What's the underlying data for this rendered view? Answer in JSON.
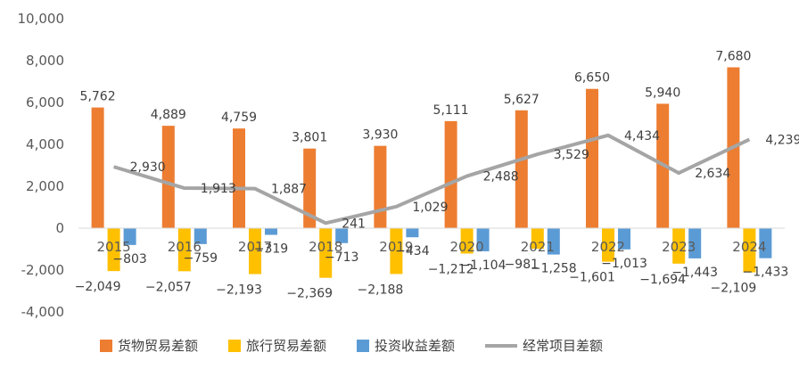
{
  "chart_data": {
    "type": "bar",
    "categories": [
      "2015",
      "2016",
      "2017",
      "2018",
      "2019",
      "2020",
      "2021",
      "2022",
      "2023",
      "2024"
    ],
    "series": [
      {
        "name": "货物贸易差额",
        "type": "bar",
        "color": "#ED7D31",
        "values": [
          5762,
          4889,
          4759,
          3801,
          3930,
          5111,
          5627,
          6650,
          5940,
          7680
        ],
        "labels": [
          "5,762",
          "4,889",
          "4,759",
          "3,801",
          "3,930",
          "5,111",
          "5,627",
          "6,650",
          "5,940",
          "7,680"
        ]
      },
      {
        "name": "旅行贸易差额",
        "type": "bar",
        "color": "#FFC000",
        "values": [
          -2049,
          -2057,
          -2193,
          -2369,
          -2188,
          -1212,
          -981,
          -1601,
          -1694,
          -2109
        ],
        "labels": [
          "−2,049",
          "−2,057",
          "−2,193",
          "−2,369",
          "−2,188",
          "−1,212",
          "−981",
          "−1,601",
          "−1,694",
          "−2,109"
        ]
      },
      {
        "name": "投资收益差额",
        "type": "bar",
        "color": "#5B9BD5",
        "values": [
          -803,
          -759,
          -319,
          -713,
          -434,
          -1104,
          -1258,
          -1013,
          -1443,
          -1433
        ],
        "labels": [
          "−803",
          "−759",
          "−319",
          "−713",
          "−434",
          "−1,104",
          "−1,258",
          "−1,013",
          "−1,443",
          "−1,433"
        ]
      },
      {
        "name": "经常项目差额",
        "type": "line",
        "color": "#A5A5A5",
        "values": [
          2930,
          1913,
          1887,
          241,
          1029,
          2488,
          3529,
          4434,
          2634,
          4239
        ],
        "labels": [
          "2,930",
          "1,913",
          "1,887",
          "241",
          "1,029",
          "2,488",
          "3,529",
          "4,434",
          "2,634",
          "4,239"
        ]
      }
    ],
    "yticks": [
      "10,000",
      "8,000",
      "6,000",
      "4,000",
      "2,000",
      "0",
      "-2,000",
      "-4,000"
    ],
    "ylim": [
      -4000,
      10000
    ],
    "grid": false,
    "legend_position": "bottom"
  }
}
